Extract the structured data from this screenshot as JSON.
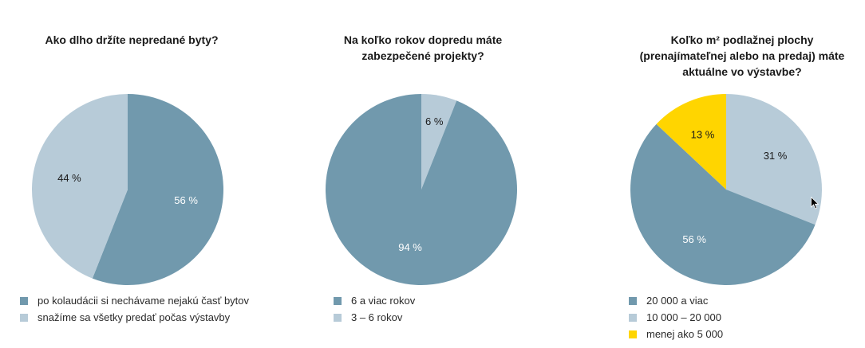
{
  "colors": {
    "dark_blue": "#7199ad",
    "light_blue": "#b7cbd8",
    "yellow": "#ffd500",
    "label_light": "#ffffff",
    "label_dark": "#1a1a1a"
  },
  "chart_data": [
    {
      "type": "pie",
      "title": "Ako dlho držíte nepredané byty?",
      "slices": [
        {
          "label": "po kolaudácii si nechávame nejakú časť bytov",
          "value": 56,
          "display": "56 %",
          "color": "#7199ad"
        },
        {
          "label": "snažíme sa všetky predať počas výstavby",
          "value": 44,
          "display": "44 %",
          "color": "#b7cbd8"
        }
      ],
      "legend_position": "bottom-left"
    },
    {
      "type": "pie",
      "title": "Na koľko rokov dopredu máte zabezpečené projekty?",
      "slices": [
        {
          "label": "3 – 6 rokov",
          "value": 6,
          "display": "6 %",
          "color": "#b7cbd8"
        },
        {
          "label": "6 a viac rokov",
          "value": 94,
          "display": "94 %",
          "color": "#7199ad"
        }
      ],
      "legend_order": [
        1,
        0
      ],
      "legend_position": "bottom-left"
    },
    {
      "type": "pie",
      "title": "Koľko m² podlažnej plochy (prenajímateľnej alebo na predaj) máte aktuálne vo výstavbe?",
      "slices": [
        {
          "label": "10 000 – 20 000",
          "value": 31,
          "display": "31 %",
          "color": "#b7cbd8"
        },
        {
          "label": "20 000 a viac",
          "value": 56,
          "display": "56 %",
          "color": "#7199ad"
        },
        {
          "label": "menej ako 5 000",
          "value": 13,
          "display": "13 %",
          "color": "#ffd500"
        }
      ],
      "legend_order": [
        1,
        0,
        2
      ],
      "legend_position": "bottom-left"
    }
  ]
}
